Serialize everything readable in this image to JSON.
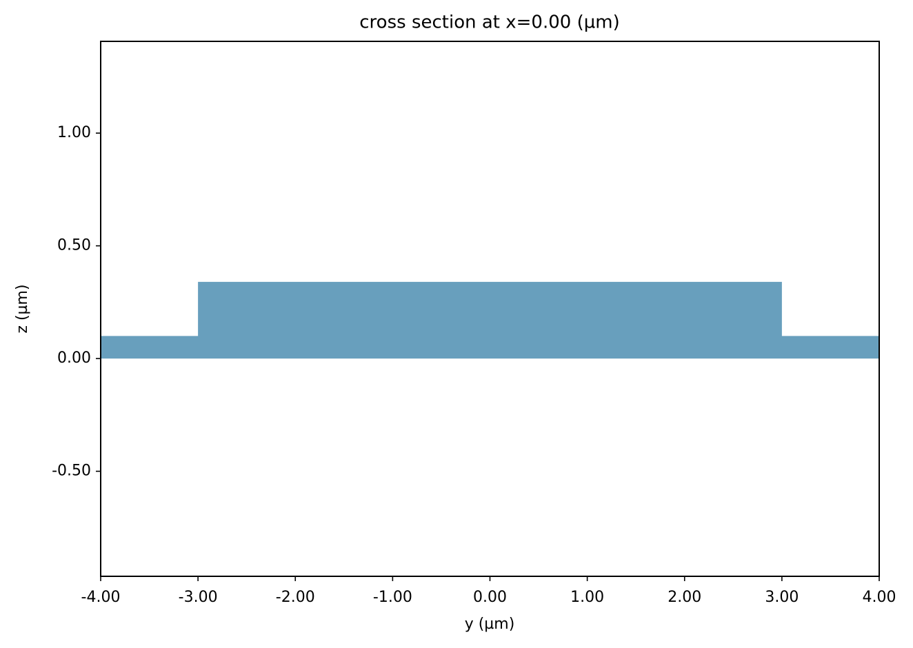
{
  "chart_data": {
    "type": "polygon",
    "title": "cross section at x=0.00 (µm)",
    "xlabel": "y (µm)",
    "ylabel": "z (µm)",
    "series": [
      {
        "color": "#689fbd",
        "x": [
          -4,
          -3,
          -3,
          3,
          3,
          4,
          4,
          -4
        ],
        "values": [
          0.1,
          0.1,
          0.34,
          0.34,
          0.1,
          0.1,
          0,
          0
        ]
      }
    ],
    "xlim": [
      -4,
      4
    ],
    "ylim": [
      -0.966,
      1.407
    ],
    "xticks": [
      {
        "value": -4,
        "label": "-4.00"
      },
      {
        "value": -3,
        "label": "-3.00"
      },
      {
        "value": -2,
        "label": "-2.00"
      },
      {
        "value": -1,
        "label": "-1.00"
      },
      {
        "value": 0,
        "label": "0.00"
      },
      {
        "value": 1,
        "label": "1.00"
      },
      {
        "value": 2,
        "label": "2.00"
      },
      {
        "value": 3,
        "label": "3.00"
      },
      {
        "value": 4,
        "label": "4.00"
      }
    ],
    "yticks": [
      {
        "value": -0.5,
        "label": "-0.50"
      },
      {
        "value": 0,
        "label": "0.00"
      },
      {
        "value": 0.5,
        "label": "0.50"
      },
      {
        "value": 1,
        "label": "1.00"
      }
    ],
    "grid": false
  }
}
